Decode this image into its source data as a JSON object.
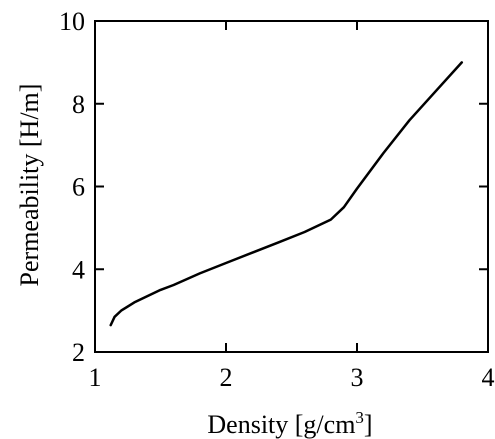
{
  "chart_data": {
    "type": "line",
    "title": "",
    "xlabel": "Density [g/cm",
    "xlabel_sup": "3",
    "xlabel_end": "]",
    "ylabel": "Permeability [H/m]",
    "xlim": [
      1,
      4
    ],
    "ylim": [
      2,
      10
    ],
    "xticks": [
      1,
      2,
      3,
      4
    ],
    "yticks": [
      2,
      4,
      6,
      8,
      10
    ],
    "grid": false,
    "legend": "none",
    "series": [
      {
        "color": "#000000",
        "x": [
          1.12,
          1.15,
          1.2,
          1.3,
          1.4,
          1.5,
          1.6,
          1.8,
          2.0,
          2.2,
          2.4,
          2.6,
          2.8,
          2.9,
          3.0,
          3.2,
          3.4,
          3.6,
          3.8
        ],
        "y": [
          2.65,
          2.85,
          3.0,
          3.2,
          3.35,
          3.5,
          3.62,
          3.9,
          4.15,
          4.4,
          4.65,
          4.9,
          5.2,
          5.5,
          5.95,
          6.8,
          7.6,
          8.3,
          9.0
        ]
      }
    ]
  }
}
